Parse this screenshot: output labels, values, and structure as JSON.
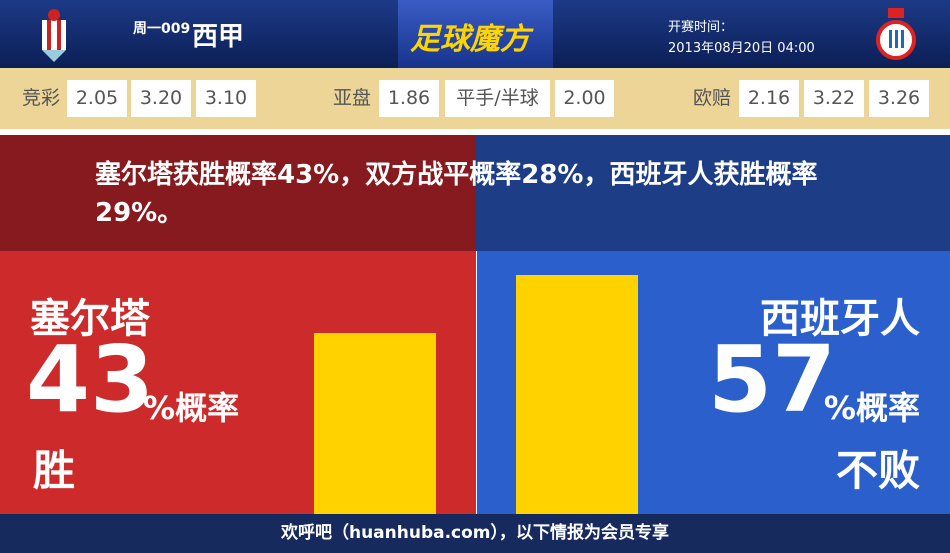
{
  "header": {
    "match_no": "周一009",
    "league": "西甲",
    "logo_text": "足球魔方",
    "kickoff_label": "开赛时间：",
    "kickoff_time": "2013年08月20日 04:00"
  },
  "odds": [
    {
      "label": "竞彩",
      "values": [
        "2.05",
        "3.20",
        "3.10"
      ]
    },
    {
      "label": "亚盘",
      "values": [
        "1.86",
        "平手/半球",
        "2.00"
      ]
    },
    {
      "label": "欧赔",
      "values": [
        "2.16",
        "3.22",
        "3.26"
      ]
    }
  ],
  "summary": "塞尔塔获胜概率43%，双方战平概率28%，西班牙人获胜概率29%。",
  "home": {
    "team": "塞尔塔",
    "percent": 43,
    "unit": "%概率",
    "outcome": "胜"
  },
  "away": {
    "team": "西班牙人",
    "percent": 57,
    "unit": "%概率",
    "outcome": "不败"
  },
  "footer": "欢呼吧（huanhuba.com），以下情报为会员专享"
}
